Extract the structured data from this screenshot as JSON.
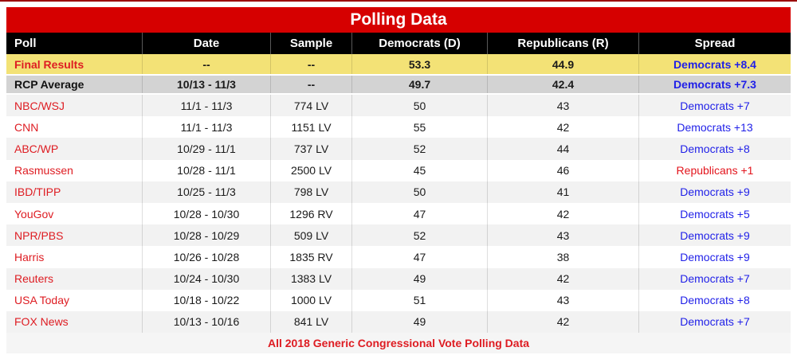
{
  "title": "Polling Data",
  "footer": "All 2018 Generic Congressional Vote Polling Data",
  "colors": {
    "title_bar_red": "#D60000",
    "header_black": "#000000",
    "poll_link_red": "#DE1C22",
    "spread_blue": "#1F1FE8",
    "spread_red": "#E3141C",
    "final_row_yellow": "#F3E276",
    "rcp_row_gray": "#D3D3D3",
    "alt_row_gray": "#F2F2F2"
  },
  "chart_data": {
    "type": "table",
    "title": "Polling Data",
    "caption": "All 2018 Generic Congressional Vote Polling Data",
    "columns": [
      "Poll",
      "Date",
      "Sample",
      "Democrats (D)",
      "Republicans (R)",
      "Spread"
    ],
    "rows": [
      {
        "poll": "Final Results",
        "date": "--",
        "sample": "--",
        "dem": "53.3",
        "rep": "44.9",
        "spread": "Democrats +8.4",
        "spread_party": "D",
        "style": "final"
      },
      {
        "poll": "RCP Average",
        "date": "10/13 - 11/3",
        "sample": "--",
        "dem": "49.7",
        "rep": "42.4",
        "spread": "Democrats +7.3",
        "spread_party": "D",
        "style": "rcp"
      },
      {
        "poll": "NBC/WSJ",
        "date": "11/1 - 11/3",
        "sample": "774 LV",
        "dem": "50",
        "rep": "43",
        "spread": "Democrats +7",
        "spread_party": "D",
        "style": "poll"
      },
      {
        "poll": "CNN",
        "date": "11/1 - 11/3",
        "sample": "1151 LV",
        "dem": "55",
        "rep": "42",
        "spread": "Democrats +13",
        "spread_party": "D",
        "style": "poll"
      },
      {
        "poll": "ABC/WP",
        "date": "10/29 - 11/1",
        "sample": "737 LV",
        "dem": "52",
        "rep": "44",
        "spread": "Democrats +8",
        "spread_party": "D",
        "style": "poll"
      },
      {
        "poll": "Rasmussen",
        "date": "10/28 - 11/1",
        "sample": "2500 LV",
        "dem": "45",
        "rep": "46",
        "spread": "Republicans +1",
        "spread_party": "R",
        "style": "poll"
      },
      {
        "poll": "IBD/TIPP",
        "date": "10/25 - 11/3",
        "sample": "798 LV",
        "dem": "50",
        "rep": "41",
        "spread": "Democrats +9",
        "spread_party": "D",
        "style": "poll"
      },
      {
        "poll": "YouGov",
        "date": "10/28 - 10/30",
        "sample": "1296 RV",
        "dem": "47",
        "rep": "42",
        "spread": "Democrats +5",
        "spread_party": "D",
        "style": "poll"
      },
      {
        "poll": "NPR/PBS",
        "date": "10/28 - 10/29",
        "sample": "509 LV",
        "dem": "52",
        "rep": "43",
        "spread": "Democrats +9",
        "spread_party": "D",
        "style": "poll"
      },
      {
        "poll": "Harris",
        "date": "10/26 - 10/28",
        "sample": "1835 RV",
        "dem": "47",
        "rep": "38",
        "spread": "Democrats +9",
        "spread_party": "D",
        "style": "poll"
      },
      {
        "poll": "Reuters",
        "date": "10/24 - 10/30",
        "sample": "1383 LV",
        "dem": "49",
        "rep": "42",
        "spread": "Democrats +7",
        "spread_party": "D",
        "style": "poll"
      },
      {
        "poll": "USA Today",
        "date": "10/18 - 10/22",
        "sample": "1000 LV",
        "dem": "51",
        "rep": "43",
        "spread": "Democrats +8",
        "spread_party": "D",
        "style": "poll"
      },
      {
        "poll": "FOX News",
        "date": "10/13 - 10/16",
        "sample": "841 LV",
        "dem": "49",
        "rep": "42",
        "spread": "Democrats +7",
        "spread_party": "D",
        "style": "poll"
      }
    ]
  }
}
